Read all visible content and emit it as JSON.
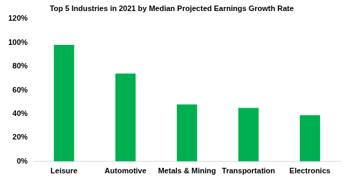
{
  "chart_data": {
    "type": "bar",
    "title": "Top 5 Industries in 2021 by Median Projected Earnings Growth Rate",
    "categories": [
      "Leisure",
      "Automotive",
      "Metals & Mining",
      "Transportation",
      "Electronics"
    ],
    "values": [
      98,
      74,
      48,
      45,
      39
    ],
    "color": "#00b050",
    "ylim": [
      0,
      120
    ],
    "yticks": [
      {
        "value": 0,
        "label": "0%"
      },
      {
        "value": 20,
        "label": "20%"
      },
      {
        "value": 40,
        "label": "40%"
      },
      {
        "value": 60,
        "label": "60%"
      },
      {
        "value": 80,
        "label": "80%"
      },
      {
        "value": 100,
        "label": "100%"
      },
      {
        "value": 120,
        "label": "120%"
      }
    ],
    "grid": false
  }
}
